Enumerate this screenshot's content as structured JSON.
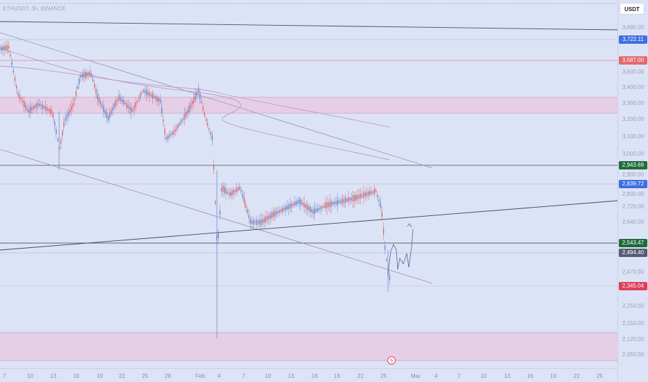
{
  "chart": {
    "symbol_label": "ETHUSDT, 3h, BINANCE",
    "currency_button": "USDT",
    "colors": {
      "background": "#dde3f6",
      "up_candle": "#5b7fc7",
      "down_candle": "#d65f66",
      "zone_fill": "#e6cfe6",
      "badge_blue": "#3d6fe0",
      "badge_red": "#e5686a",
      "badge_green": "#1f6b3a",
      "badge_gray": "#555d75",
      "badge_pink": "#e23d5a"
    },
    "event_icon": "lightning-icon"
  },
  "price_axis": {
    "ticks": [
      "3,690.00",
      "3,600.00",
      "3,400.00",
      "3,300.00",
      "3,200.00",
      "3,100.00",
      "3,000.00",
      "2,900.00",
      "2,800.00",
      "2,720.00",
      "2,640.00",
      "2,470.00",
      "2,410.00",
      "2,250.00",
      "2,150.00",
      "2,120.00",
      "2,050.00"
    ],
    "badges": [
      {
        "label": "3,722.11",
        "color": "#3d6fe0"
      },
      {
        "label": "3,587.00",
        "color": "#e5686a"
      },
      {
        "label": "2,943.69",
        "color": "#1f6b3a"
      },
      {
        "label": "2,839.72",
        "color": "#3d6fe0"
      },
      {
        "label": "2,543.47",
        "color": "#1f6b3a"
      },
      {
        "label": "2,494.40",
        "color": "#555d75"
      },
      {
        "label": "2,345.04",
        "color": "#e23d5a"
      }
    ]
  },
  "time_axis": {
    "ticks": [
      "7",
      "10",
      "13",
      "16",
      "19",
      "22",
      "25",
      "28",
      "Feb",
      "4",
      "7",
      "10",
      "13",
      "16",
      "19",
      "22",
      "25",
      "Mar",
      "4",
      "7",
      "10",
      "13",
      "16",
      "19",
      "22",
      "25"
    ]
  }
}
